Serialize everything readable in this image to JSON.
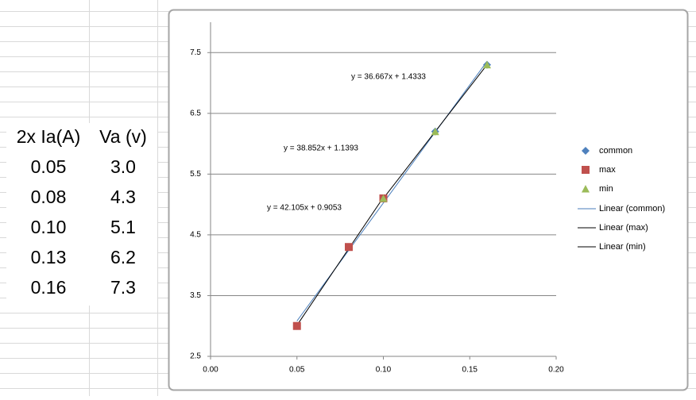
{
  "table": {
    "header": [
      "2x Ia(A)",
      "Va (v)"
    ],
    "rows": [
      [
        "0.05",
        "3.0"
      ],
      [
        "0.08",
        "4.3"
      ],
      [
        "0.10",
        "5.1"
      ],
      [
        "0.13",
        "6.2"
      ],
      [
        "0.16",
        "7.3"
      ]
    ]
  },
  "chart_data": {
    "type": "scatter",
    "series": [
      {
        "name": "common",
        "color": "#4f81bd",
        "marker": "diamond",
        "x": [
          0.05,
          0.08,
          0.1,
          0.13,
          0.16
        ],
        "values": [
          3.0,
          4.3,
          5.1,
          6.2,
          7.3
        ],
        "trendline": {
          "name": "Linear (common)",
          "color": "#4a7ebb",
          "equation": "y = 38.852x + 1.1393"
        }
      },
      {
        "name": "max",
        "color": "#c0504d",
        "marker": "square",
        "x": [
          0.05,
          0.08,
          0.1
        ],
        "values": [
          3.0,
          4.3,
          5.1
        ],
        "trendline": {
          "name": "Linear (max)",
          "color": "#000000",
          "equation": "y = 42.105x + 0.9053"
        }
      },
      {
        "name": "min",
        "color": "#9bbb59",
        "marker": "triangle",
        "x": [
          0.1,
          0.13,
          0.16
        ],
        "values": [
          5.1,
          6.2,
          7.3
        ],
        "trendline": {
          "name": "Linear (min)",
          "color": "#000000",
          "equation": "y = 36.667x + 1.4333"
        }
      }
    ],
    "xlim": [
      0,
      0.2
    ],
    "ylim": [
      2.5,
      8.0
    ],
    "xticks": [
      {
        "value": 0,
        "label": "0.00"
      },
      {
        "value": 0.05,
        "label": "0.05"
      },
      {
        "value": 0.1,
        "label": "0.10"
      },
      {
        "value": 0.15,
        "label": "0.15"
      },
      {
        "value": 0.2,
        "label": "0.20"
      }
    ],
    "yticks": [
      2.5,
      3.5,
      4.5,
      5.5,
      6.5,
      7.5
    ],
    "grid": true,
    "legend": "right"
  }
}
